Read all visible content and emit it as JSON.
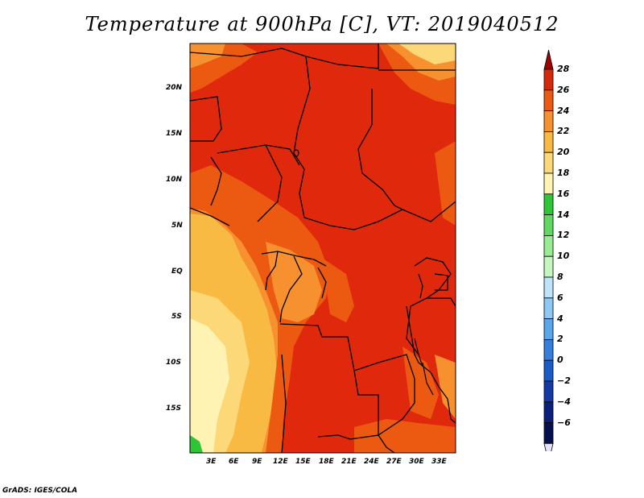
{
  "title": "Temperature at 900hPa [C], VT: 2019040512",
  "credit": "GrADS: IGES/COLA",
  "map": {
    "lat_ticks": [
      "20N",
      "15N",
      "10N",
      "5N",
      "EQ",
      "5S",
      "10S",
      "15S"
    ],
    "lon_ticks": [
      "3E",
      "6E",
      "9E",
      "12E",
      "15E",
      "18E",
      "21E",
      "24E",
      "27E",
      "30E",
      "33E"
    ]
  },
  "colorbar": {
    "labels": [
      "28",
      "26",
      "24",
      "22",
      "20",
      "18",
      "16",
      "14",
      "12",
      "10",
      "8",
      "6",
      "4",
      "2",
      "0",
      "−2",
      "−4",
      "−6"
    ],
    "colors": [
      "#a00000",
      "#d42a0a",
      "#ec5a12",
      "#f7902e",
      "#f9ba44",
      "#fcd878",
      "#fff3b4",
      "#2ec637",
      "#60d963",
      "#98ec91",
      "#c6f6c0",
      "#bfe4f9",
      "#8ec8f3",
      "#5aa6ec",
      "#347edc",
      "#1a5ac9",
      "#1438a4",
      "#0a1e7c",
      "#05104e",
      "#e3e3f9"
    ]
  }
}
